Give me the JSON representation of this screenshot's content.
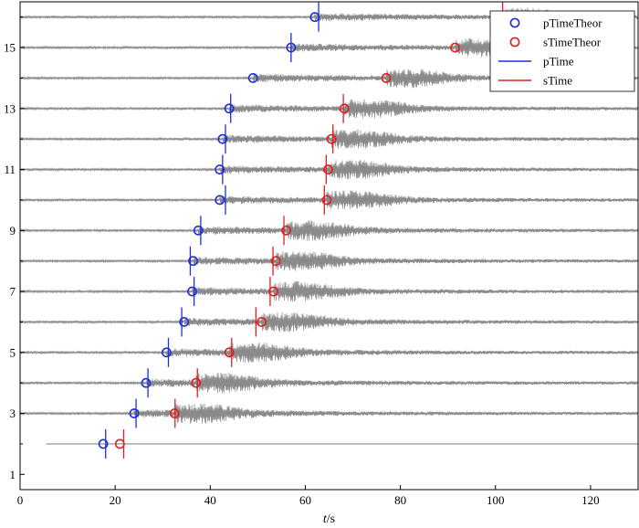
{
  "chart_data": {
    "type": "scatter",
    "title": "",
    "xlabel": "t/s",
    "xlabel_italic_part": "t",
    "xlabel_unit_part": "/s",
    "ylabel": "",
    "xlim": [
      0,
      130
    ],
    "ylim": [
      0.5,
      16.5
    ],
    "x_ticks": [
      0,
      20,
      40,
      60,
      80,
      100,
      120
    ],
    "y_ticks": [
      1,
      3,
      5,
      7,
      9,
      11,
      13,
      15
    ],
    "grid": false,
    "legend_position": "top-right",
    "trace_rows": [
      2,
      3,
      4,
      5,
      6,
      7,
      8,
      9,
      10,
      11,
      12,
      13,
      14,
      15,
      16
    ],
    "flat_trace_rows": [
      2
    ],
    "colors": {
      "trace": "#8a8a8a",
      "p": "#1f2fd6",
      "s": "#e02020",
      "axis": "#000000"
    },
    "legend": [
      {
        "name": "pTimeTheor",
        "marker": "circle",
        "color": "#1f2fd6"
      },
      {
        "name": "sTimeTheor",
        "marker": "circle",
        "color": "#e02020"
      },
      {
        "name": "pTime",
        "marker": "line",
        "color": "#1f2fd6"
      },
      {
        "name": "sTime",
        "marker": "line",
        "color": "#e02020"
      }
    ],
    "series": [
      {
        "name": "pTimeTheor",
        "points": [
          {
            "y": 2,
            "x": 17.5
          },
          {
            "y": 3,
            "x": 24.0
          },
          {
            "y": 4,
            "x": 26.5
          },
          {
            "y": 5,
            "x": 30.8
          },
          {
            "y": 6,
            "x": 34.5
          },
          {
            "y": 7,
            "x": 36.2
          },
          {
            "y": 8,
            "x": 36.4
          },
          {
            "y": 9,
            "x": 37.5
          },
          {
            "y": 10,
            "x": 42.0
          },
          {
            "y": 11,
            "x": 42.0
          },
          {
            "y": 12,
            "x": 42.6
          },
          {
            "y": 13,
            "x": 44.0
          },
          {
            "y": 14,
            "x": 49.0
          },
          {
            "y": 15,
            "x": 57.0
          },
          {
            "y": 16,
            "x": 62.0
          }
        ]
      },
      {
        "name": "sTimeTheor",
        "points": [
          {
            "y": 2,
            "x": 21.0
          },
          {
            "y": 3,
            "x": 32.5
          },
          {
            "y": 4,
            "x": 37.0
          },
          {
            "y": 5,
            "x": 44.0
          },
          {
            "y": 6,
            "x": 50.8
          },
          {
            "y": 7,
            "x": 53.3
          },
          {
            "y": 8,
            "x": 53.8
          },
          {
            "y": 9,
            "x": 56.0
          },
          {
            "y": 10,
            "x": 64.5
          },
          {
            "y": 11,
            "x": 64.8
          },
          {
            "y": 12,
            "x": 65.5
          },
          {
            "y": 13,
            "x": 68.2
          },
          {
            "y": 14,
            "x": 77.0
          },
          {
            "y": 15,
            "x": 91.5
          },
          {
            "y": 16,
            "x": 102.0
          }
        ]
      },
      {
        "name": "pTime",
        "points": [
          {
            "y": 2,
            "x": 18.0
          },
          {
            "y": 3,
            "x": 24.4
          },
          {
            "y": 4,
            "x": 26.9
          },
          {
            "y": 5,
            "x": 31.2
          },
          {
            "y": 6,
            "x": 34.0
          },
          {
            "y": 7,
            "x": 36.6
          },
          {
            "y": 8,
            "x": 35.8
          },
          {
            "y": 9,
            "x": 38.0
          },
          {
            "y": 10,
            "x": 43.2
          },
          {
            "y": 11,
            "x": 42.6
          },
          {
            "y": 12,
            "x": 43.2
          },
          {
            "y": 13,
            "x": 44.3
          },
          {
            "y": 15,
            "x": 57.0
          },
          {
            "y": 16,
            "x": 62.8
          }
        ]
      },
      {
        "name": "sTime",
        "points": [
          {
            "y": 2,
            "x": 21.8
          },
          {
            "y": 3,
            "x": 32.6
          },
          {
            "y": 4,
            "x": 37.3
          },
          {
            "y": 5,
            "x": 44.5
          },
          {
            "y": 6,
            "x": 49.6
          },
          {
            "y": 7,
            "x": 52.6
          },
          {
            "y": 8,
            "x": 53.2
          },
          {
            "y": 9,
            "x": 55.5
          },
          {
            "y": 10,
            "x": 64.0
          },
          {
            "y": 11,
            "x": 64.4
          },
          {
            "y": 12,
            "x": 65.8
          },
          {
            "y": 13,
            "x": 68.0
          },
          {
            "y": 16,
            "x": 101.5
          }
        ]
      }
    ]
  }
}
